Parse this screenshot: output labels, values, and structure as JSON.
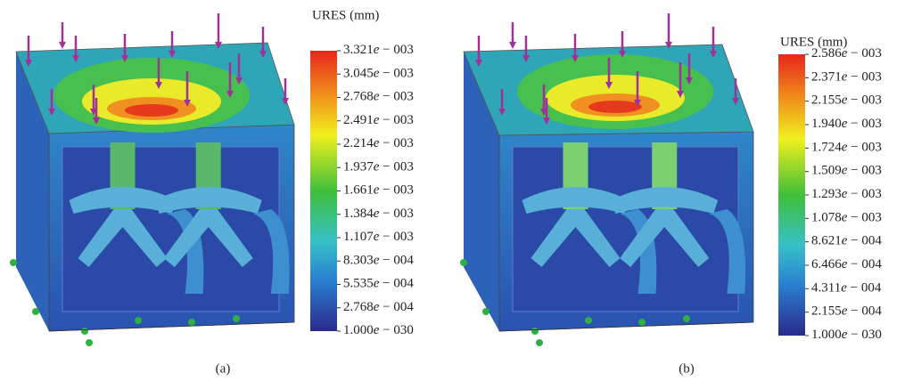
{
  "panels": [
    {
      "legend_title": "URES (mm)",
      "labels": [
        "3.321e − 003",
        "3.045e − 003",
        "2.768e − 003",
        "2.491e − 003",
        "2.214e − 003",
        "1.937e − 003",
        "1.661e − 003",
        "1.384e − 003",
        "1.107e − 003",
        "8.303e − 004",
        "5.535e − 004",
        "2.768e − 004",
        "1.000e − 030"
      ],
      "caption": "(a)"
    },
    {
      "legend_title": "URES (mm)",
      "labels": [
        "2.586e − 003",
        "2.371e − 003",
        "2.155e − 003",
        "1.940e − 003",
        "1.724e − 003",
        "1.509e − 003",
        "1.293e − 003",
        "1.078e − 003",
        "8.621e − 004",
        "6.466e − 004",
        "4.311e − 004",
        "2.155e − 004",
        "1.000e − 030"
      ],
      "caption": "(b)"
    }
  ]
}
